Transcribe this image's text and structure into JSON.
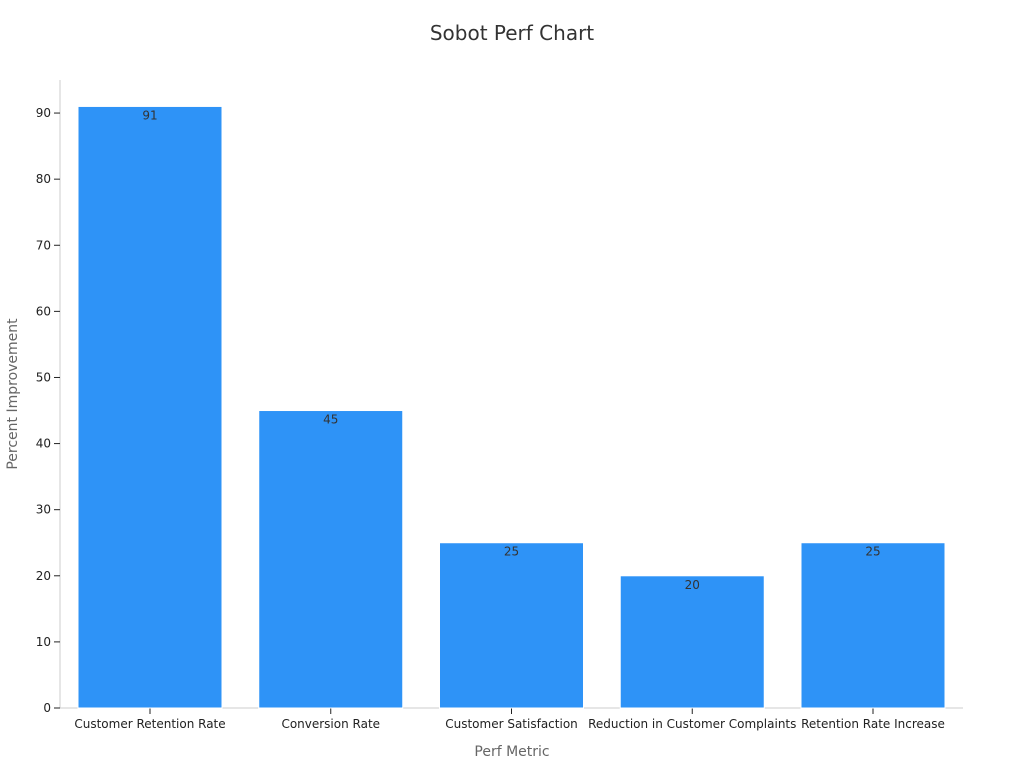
{
  "chart_data": {
    "type": "bar",
    "title": "Sobot Perf Chart",
    "xlabel": "Perf Metric",
    "ylabel": "Percent Improvement",
    "categories": [
      "Customer Retention Rate",
      "Conversion Rate",
      "Customer Satisfaction",
      "Reduction in Customer Complaints",
      "Retention Rate Increase"
    ],
    "values": [
      91,
      45,
      25,
      20,
      25
    ],
    "ylim": [
      0,
      95
    ],
    "yticks": [
      0,
      10,
      20,
      30,
      40,
      50,
      60,
      70,
      80,
      90
    ],
    "grid": false,
    "legend": "none",
    "data_labels": true
  },
  "colors": {
    "bar_fill": "#2e93f7",
    "bar_stroke": "#ffffff",
    "axis_line": "#cccccc",
    "title": "#333333",
    "axis_title": "#666666",
    "tick_label": "#222222",
    "data_label": "#333333"
  }
}
